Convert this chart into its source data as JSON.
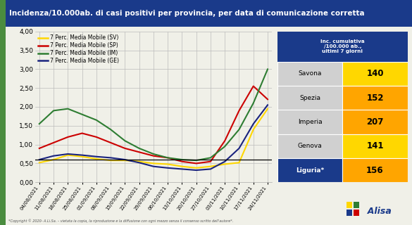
{
  "title": "Incidenza/10.000ab. di casi positivi per provincia, per data di comunicazione corretta",
  "title_color": "#ffffff",
  "title_bg_color": "#1a3a8a",
  "background_color": "#f0f0e8",
  "plot_bg_color": "#f0f0e8",
  "green_border_color": "#4a8c3f",
  "x_labels": [
    "04/08/2021",
    "11/08/2021",
    "18/08/2021",
    "25/08/2021",
    "01/09/2021",
    "08/09/2021",
    "15/09/2021",
    "22/09/2021",
    "29/09/2021",
    "06/10/2021",
    "13/10/2021",
    "20/10/2021",
    "27/10/2021",
    "03/11/2021",
    "10/11/2021",
    "17/11/2021",
    "24/11/2021"
  ],
  "ylim": [
    0.0,
    4.0
  ],
  "yticks": [
    0.0,
    0.5,
    1.0,
    1.5,
    2.0,
    2.5,
    3.0,
    3.5,
    4.0
  ],
  "ytick_labels": [
    "0,00",
    "0,50",
    "1,00",
    "1,50",
    "2,00",
    "2,50",
    "3,00",
    "3,50",
    "4,00"
  ],
  "hline_y": 0.6,
  "hline_color": "#000000",
  "series": [
    {
      "label": "7 Perc. Media Mobile (SV)",
      "color": "#FFD700",
      "linewidth": 1.5,
      "data": [
        0.52,
        0.6,
        0.72,
        0.68,
        0.62,
        0.58,
        0.58,
        0.55,
        0.5,
        0.48,
        0.42,
        0.38,
        0.42,
        0.48,
        0.52,
        1.4,
        1.95
      ]
    },
    {
      "label": "7 Perc. Media Mobile (SP)",
      "color": "#CC0000",
      "linewidth": 1.5,
      "data": [
        0.9,
        1.05,
        1.2,
        1.3,
        1.2,
        1.05,
        0.9,
        0.8,
        0.7,
        0.65,
        0.55,
        0.5,
        0.55,
        1.1,
        1.9,
        2.55,
        2.2
      ]
    },
    {
      "label": "7 Perc. Media Mobile (IM)",
      "color": "#2E7D32",
      "linewidth": 1.5,
      "data": [
        1.55,
        1.9,
        1.95,
        1.8,
        1.65,
        1.4,
        1.1,
        0.9,
        0.75,
        0.65,
        0.6,
        0.58,
        0.65,
        0.95,
        1.4,
        2.1,
        3.0
      ]
    },
    {
      "label": "7 Perc. Media Mobile (GE)",
      "color": "#1a237e",
      "linewidth": 1.5,
      "data": [
        0.6,
        0.7,
        0.75,
        0.72,
        0.68,
        0.65,
        0.6,
        0.52,
        0.42,
        0.38,
        0.35,
        0.32,
        0.35,
        0.55,
        0.9,
        1.55,
        2.05
      ]
    }
  ],
  "table_header_bg": "#1a3a8a",
  "table_header_text_color": "#ffffff",
  "table_header_label": "Inc. cumulativa\n/100.000 ab.,\nultimi 7 giorni",
  "table_rows": [
    {
      "city": "Savona",
      "value": "140",
      "city_bg": "#d0d0d0",
      "value_bg": "#FFD700"
    },
    {
      "city": "Spezia",
      "value": "152",
      "city_bg": "#d0d0d0",
      "value_bg": "#FFA500"
    },
    {
      "city": "Imperia",
      "value": "207",
      "city_bg": "#d0d0d0",
      "value_bg": "#FFA500"
    },
    {
      "city": "Genova",
      "value": "141",
      "city_bg": "#d0d0d0",
      "value_bg": "#FFD700"
    },
    {
      "city": "Liguria*",
      "value": "156",
      "city_bg": "#1a3a8a",
      "value_bg": "#FFA500"
    }
  ],
  "table_city_text_normal": "#000000",
  "table_city_text_liguria": "#ffffff",
  "table_value_text_color": "#000000",
  "copyright_text": "*Copyright © 2020- A.Li.Sa. – vietata la copia, la riproduzione e la diffusione con ogni mezzo senza il consenso scritto dell'autore*.",
  "footer_color": "#555555"
}
